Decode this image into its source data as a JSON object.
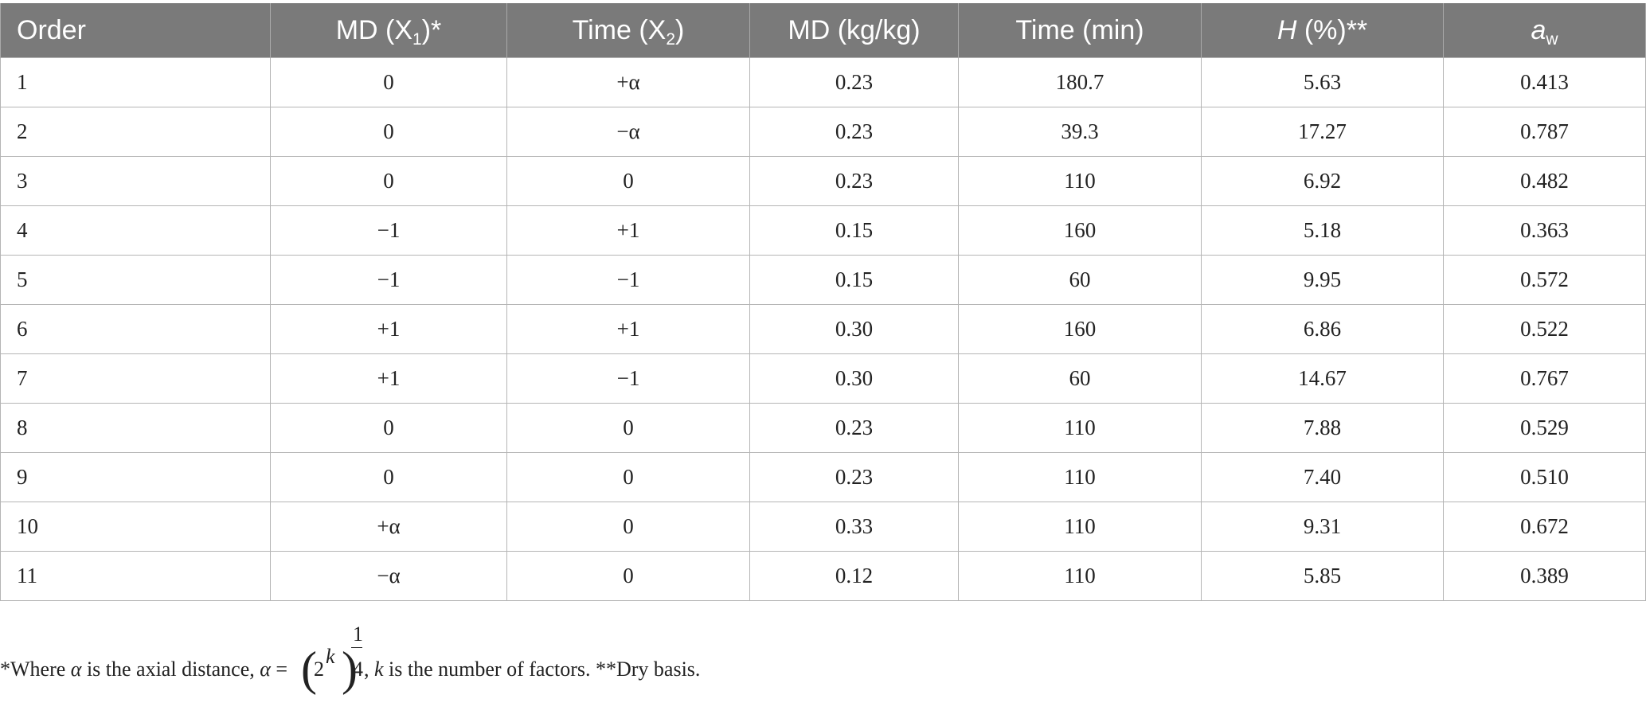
{
  "table": {
    "headers": {
      "order": "Order",
      "md_x1_base": "MD (X",
      "md_x1_sub": "1",
      "md_x1_tail": ")*",
      "time_x2_base": "Time (X",
      "time_x2_sub": "2",
      "time_x2_tail": ")",
      "md_kgkg": "MD (kg/kg)",
      "time_min": "Time (min)",
      "h_italic": "H",
      "h_tail": " (%)**",
      "aw_base": "a",
      "aw_sub": "w"
    },
    "rows": [
      {
        "order": "1",
        "md_x1": "0",
        "time_x2": "+α",
        "md": "0.23",
        "time": "180.7",
        "h": "5.63",
        "aw": "0.413"
      },
      {
        "order": "2",
        "md_x1": "0",
        "time_x2": "−α",
        "md": "0.23",
        "time": "39.3",
        "h": "17.27",
        "aw": "0.787"
      },
      {
        "order": "3",
        "md_x1": "0",
        "time_x2": "0",
        "md": "0.23",
        "time": "110",
        "h": "6.92",
        "aw": "0.482"
      },
      {
        "order": "4",
        "md_x1": "−1",
        "time_x2": "+1",
        "md": "0.15",
        "time": "160",
        "h": "5.18",
        "aw": "0.363"
      },
      {
        "order": "5",
        "md_x1": "−1",
        "time_x2": "−1",
        "md": "0.15",
        "time": "60",
        "h": "9.95",
        "aw": "0.572"
      },
      {
        "order": "6",
        "md_x1": "+1",
        "time_x2": "+1",
        "md": "0.30",
        "time": "160",
        "h": "6.86",
        "aw": "0.522"
      },
      {
        "order": "7",
        "md_x1": "+1",
        "time_x2": "−1",
        "md": "0.30",
        "time": "60",
        "h": "14.67",
        "aw": "0.767"
      },
      {
        "order": "8",
        "md_x1": "0",
        "time_x2": "0",
        "md": "0.23",
        "time": "110",
        "h": "7.88",
        "aw": "0.529"
      },
      {
        "order": "9",
        "md_x1": "0",
        "time_x2": "0",
        "md": "0.23",
        "time": "110",
        "h": "7.40",
        "aw": "0.510"
      },
      {
        "order": "10",
        "md_x1": "+α",
        "time_x2": "0",
        "md": "0.33",
        "time": "110",
        "h": "9.31",
        "aw": "0.672"
      },
      {
        "order": "11",
        "md_x1": "−α",
        "time_x2": "0",
        "md": "0.12",
        "time": "110",
        "h": "5.85",
        "aw": "0.389"
      }
    ]
  },
  "footnote": {
    "lead": "*Where ",
    "alpha": "α",
    "is_axial": " is the axial distance, ",
    "alpha2": "α",
    "equals": " =",
    "two": "2",
    "k_exp": "k",
    "frac_num": "1",
    "frac_den": "4",
    "comma": ",",
    "k_var": "k",
    "tail": " is the number of factors. **Dry basis."
  },
  "colors": {
    "header_bg": "#7a7a7a",
    "header_text": "#ffffff",
    "grid": "#b5b5b5"
  }
}
